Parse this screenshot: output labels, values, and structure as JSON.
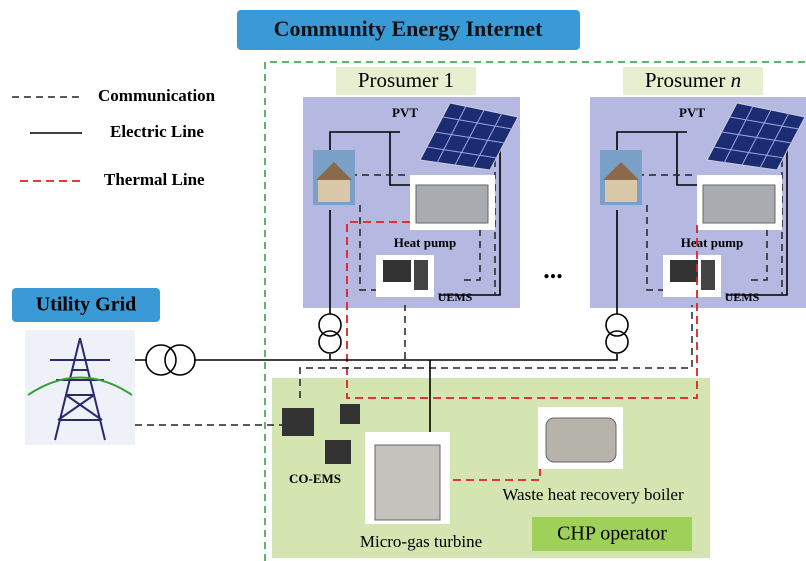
{
  "title": "Community Energy Internet",
  "legend": [
    {
      "label": "Communication"
    },
    {
      "label": "Electric Line"
    },
    {
      "label": "Thermal Line"
    }
  ],
  "prosumers": [
    {
      "name": "Prosumer",
      "index": "1",
      "pvt": "PVT",
      "heat_pump": "Heat pump",
      "uems": "UEMS"
    },
    {
      "name": "Prosumer",
      "index": "n",
      "pvt": "PVT",
      "heat_pump": "Heat pump",
      "uems": "UEMS"
    }
  ],
  "ellipsis": "...",
  "utility_grid": "Utility Grid",
  "chp": {
    "co_ems": "CO-EMS",
    "turbine": "Micro-gas turbine",
    "boiler": "Waste heat recovery boiler",
    "label": "CHP operator"
  }
}
